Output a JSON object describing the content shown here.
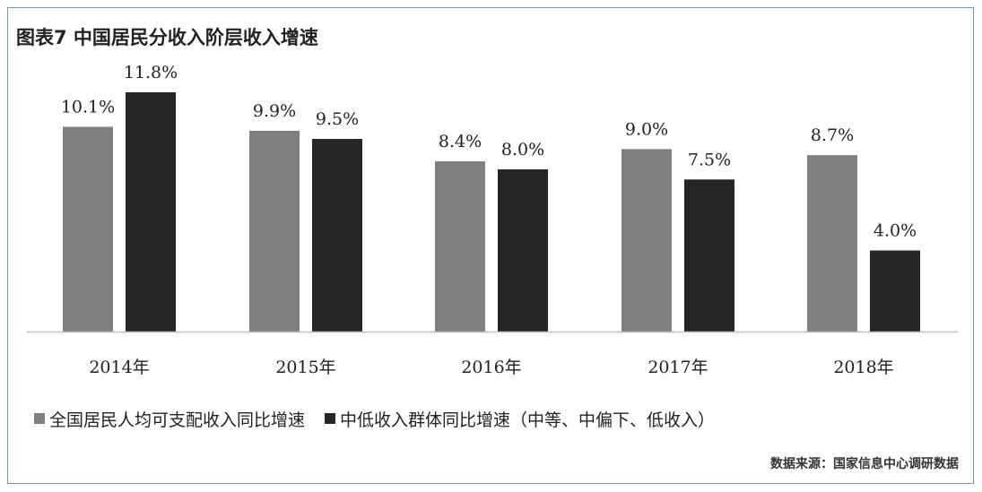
{
  "chart_data": {
    "type": "bar",
    "title": "图表7  中国居民分收入阶层收入增速",
    "categories": [
      "2014年",
      "2015年",
      "2016年",
      "2017年",
      "2018年"
    ],
    "series": [
      {
        "name": "全国居民人均可支配收入同比增速",
        "values": [
          10.1,
          9.9,
          8.4,
          9.0,
          8.7
        ],
        "labels": [
          "10.1%",
          "9.9%",
          "8.4%",
          "9.0%",
          "8.7%"
        ],
        "color": "#808080"
      },
      {
        "name": "中低收入群体同比增速（中等、中偏下、低收入）",
        "values": [
          11.8,
          9.5,
          8.0,
          7.5,
          4.0
        ],
        "labels": [
          "11.8%",
          "9.5%",
          "8.0%",
          "7.5%",
          "4.0%"
        ],
        "color": "#262626"
      }
    ],
    "ylim": [
      0,
      11.8
    ],
    "grid": false,
    "legend_position": "bottom",
    "xlabel": "",
    "ylabel": ""
  },
  "source": "数据来源：国家信息中心调研数据"
}
